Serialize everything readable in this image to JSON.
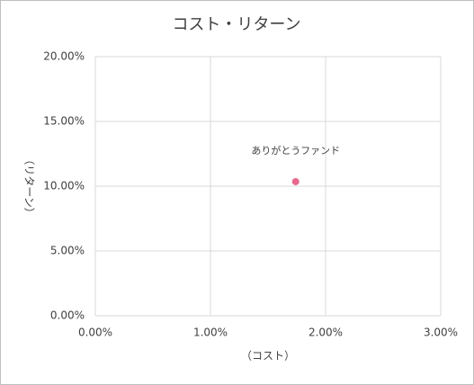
{
  "chart_data": {
    "type": "scatter",
    "title": "コスト・リターン",
    "x_label": "（コスト）",
    "y_label": "（リターン）",
    "series": [
      {
        "name": "ありがとうファンド",
        "color": "#e8698d",
        "x": [
          1.74
        ],
        "values": [
          10.35
        ]
      }
    ],
    "xlim": [
      0,
      3
    ],
    "ylim": [
      0,
      20
    ],
    "xticks": [
      {
        "value": 0,
        "label": "0.00%"
      },
      {
        "value": 1,
        "label": "1.00%"
      },
      {
        "value": 2,
        "label": "2.00%"
      },
      {
        "value": 3,
        "label": "3.00%"
      }
    ],
    "yticks": [
      {
        "value": 0,
        "label": "0.00%"
      },
      {
        "value": 5,
        "label": "5.00%"
      },
      {
        "value": 10,
        "label": "10.00%"
      },
      {
        "value": 15,
        "label": "15.00%"
      },
      {
        "value": 20,
        "label": "20.00%"
      }
    ],
    "grid": true
  }
}
